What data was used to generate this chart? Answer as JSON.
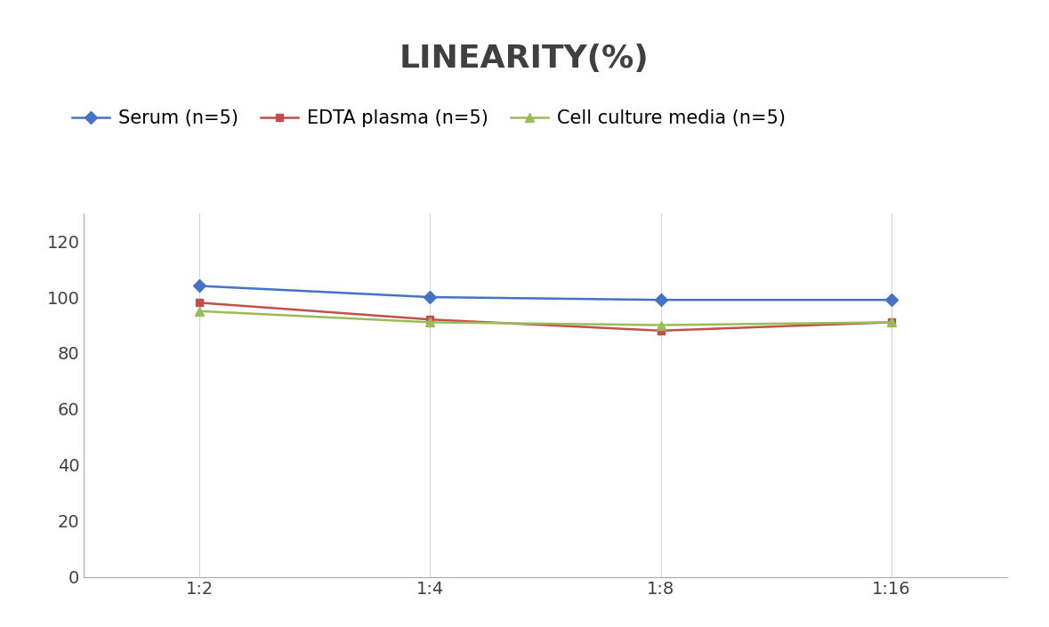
{
  "title": "LINEARITY(%)",
  "x_labels": [
    "1:2",
    "1:4",
    "1:8",
    "1:16"
  ],
  "x_positions": [
    0,
    1,
    2,
    3
  ],
  "series": [
    {
      "label": "Serum (n=5)",
      "values": [
        104,
        100,
        99,
        99
      ],
      "color": "#4472C4",
      "marker": "D",
      "marker_size": 7,
      "linewidth": 1.8
    },
    {
      "label": "EDTA plasma (n=5)",
      "values": [
        98,
        92,
        88,
        91
      ],
      "color": "#C0504D",
      "marker": "s",
      "marker_size": 6,
      "linewidth": 1.8
    },
    {
      "label": "Cell culture media (n=5)",
      "values": [
        95,
        91,
        90,
        91
      ],
      "color": "#9BBB59",
      "marker": "^",
      "marker_size": 7,
      "linewidth": 1.8
    }
  ],
  "ylim": [
    0,
    130
  ],
  "yticks": [
    0,
    20,
    40,
    60,
    80,
    100,
    120
  ],
  "title_fontsize": 26,
  "title_color": "#404040",
  "tick_fontsize": 14,
  "legend_fontsize": 15,
  "background_color": "#ffffff",
  "grid_color": "#d5d5d5",
  "title_fontweight": "bold"
}
